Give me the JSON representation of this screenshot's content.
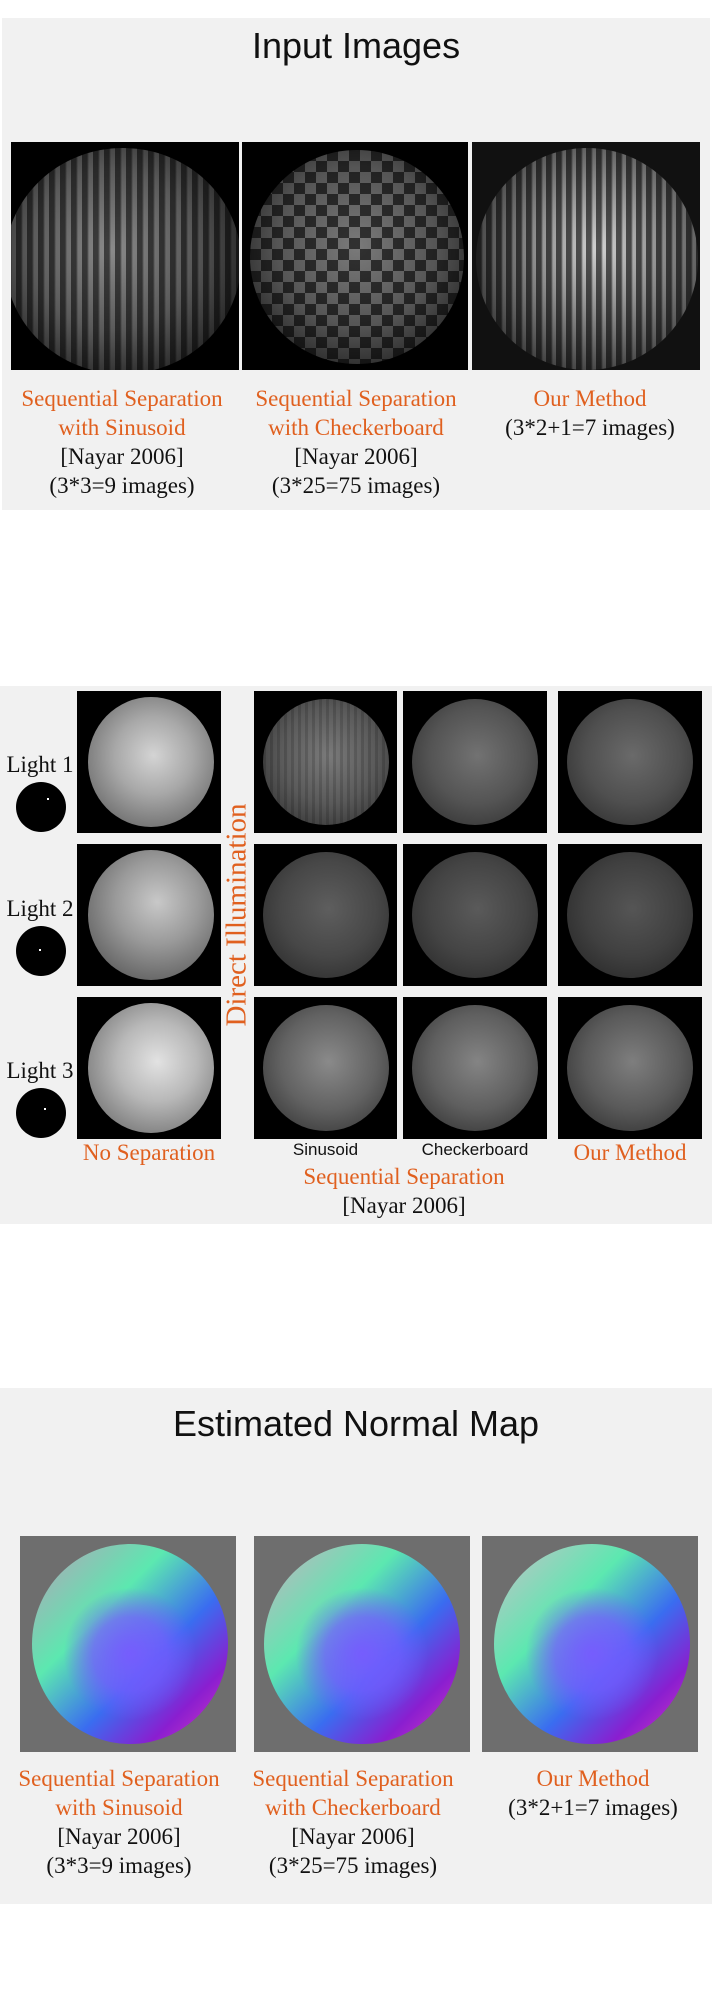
{
  "input_section": {
    "title": "Input Images",
    "captions": [
      {
        "orange_lines": [
          "Sequential Separation",
          "with Sinusoid"
        ],
        "black_lines": [
          "[Nayar 2006]",
          "(3*3=9 images)"
        ]
      },
      {
        "orange_lines": [
          "Sequential Separation",
          "with Checkerboard"
        ],
        "black_lines": [
          "[Nayar 2006]",
          "(3*25=75 images)"
        ]
      },
      {
        "orange_lines": [
          "Our Method"
        ],
        "black_lines": [
          "(3*2+1=7 images)"
        ]
      }
    ]
  },
  "direct_section": {
    "row_labels": [
      "Light 1",
      "Light 2",
      "Light 3"
    ],
    "vertical_label": "Direct Illumination",
    "col_labels": {
      "no_sep": "No Separation",
      "sinusoid": "Sinusoid",
      "checkerboard": "Checkerboard",
      "our": "Our Method",
      "seq_sep": "Sequential Separation",
      "ref": "[Nayar 2006]"
    }
  },
  "normal_section": {
    "title": "Estimated Normal Map",
    "captions": [
      {
        "orange_lines": [
          "Sequential Separation",
          "with Sinusoid"
        ],
        "black_lines": [
          "[Nayar 2006]",
          "(3*3=9 images)"
        ]
      },
      {
        "orange_lines": [
          "Sequential Separation",
          "with Checkerboard"
        ],
        "black_lines": [
          "[Nayar 2006]",
          "(3*25=75 images)"
        ]
      },
      {
        "orange_lines": [
          "Our Method"
        ],
        "black_lines": [
          "(3*2+1=7 images)"
        ]
      }
    ]
  },
  "colors": {
    "accent": "#e0601f",
    "panel_bg": "#f1f1f1"
  }
}
